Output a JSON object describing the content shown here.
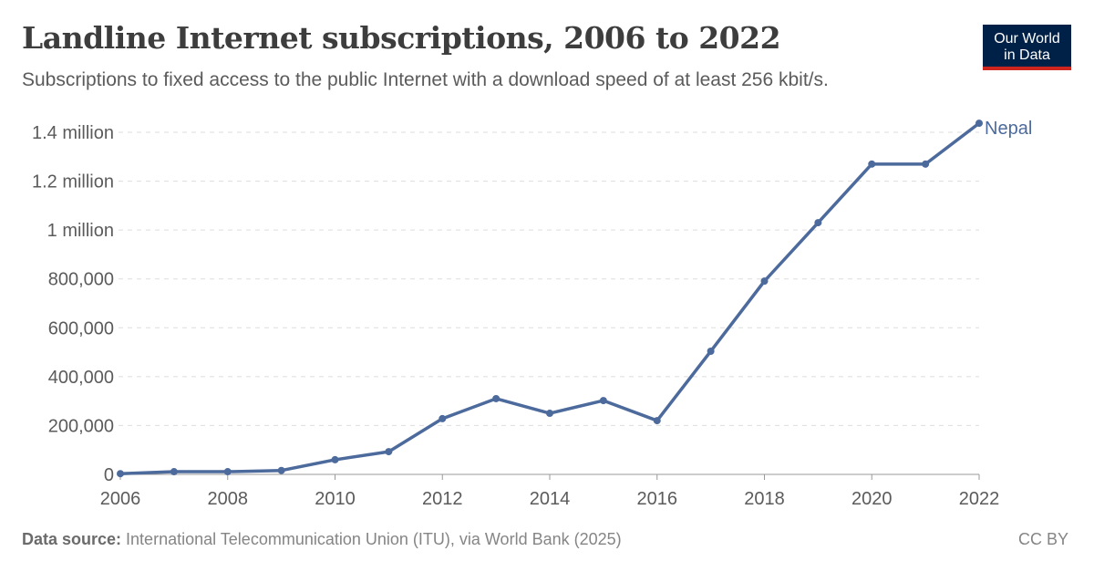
{
  "header": {
    "title": "Landline Internet subscriptions, 2006 to 2022",
    "subtitle": "Subscriptions to fixed access to the public Internet with a download speed of at least 256 kbit/s.",
    "logo": "Our World in Data"
  },
  "footer": {
    "source_label": "Data source:",
    "source_text": " International Telecommunication Union (ITU), via World Bank (2025)",
    "license": "CC BY"
  },
  "colors": {
    "series": "#4c6a9c",
    "grid": "#dddddd",
    "text": "#5b5b5b"
  },
  "chart_data": {
    "type": "line",
    "xlim": [
      2006,
      2022
    ],
    "ylim": [
      0,
      1400000
    ],
    "grid": true,
    "x_ticks": [
      2006,
      2008,
      2010,
      2012,
      2014,
      2016,
      2018,
      2020,
      2022
    ],
    "y_ticks": [
      {
        "v": 0,
        "label": "0"
      },
      {
        "v": 200000,
        "label": "200,000"
      },
      {
        "v": 400000,
        "label": "400,000"
      },
      {
        "v": 600000,
        "label": "600,000"
      },
      {
        "v": 800000,
        "label": "800,000"
      },
      {
        "v": 1000000,
        "label": "1 million"
      },
      {
        "v": 1200000,
        "label": "1.2 million"
      },
      {
        "v": 1400000,
        "label": "1.4 million"
      }
    ],
    "series": [
      {
        "name": "Nepal",
        "x": [
          2006,
          2007,
          2008,
          2009,
          2010,
          2011,
          2012,
          2013,
          2014,
          2015,
          2016,
          2017,
          2018,
          2019,
          2020,
          2021,
          2022
        ],
        "values": [
          3000,
          11000,
          11000,
          16000,
          60000,
          93000,
          228000,
          310000,
          250000,
          302000,
          220000,
          504000,
          791000,
          1030000,
          1270000,
          1270000,
          1437000
        ]
      }
    ]
  }
}
